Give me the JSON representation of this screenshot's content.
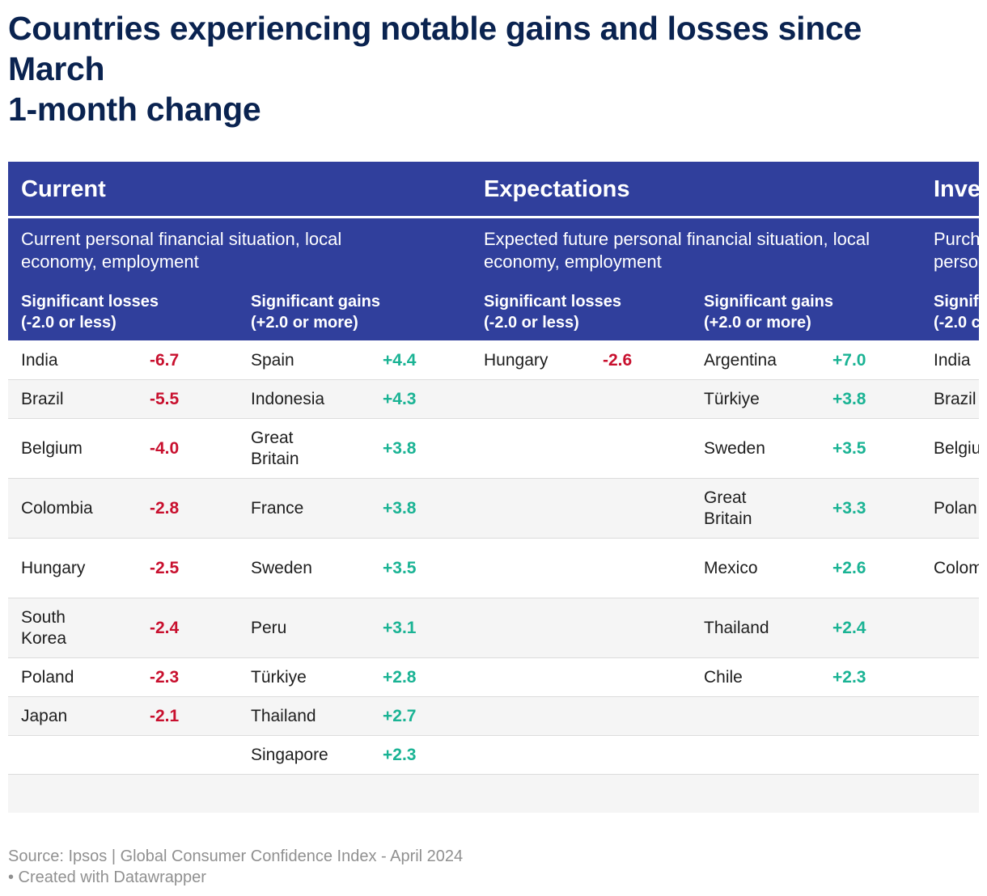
{
  "title_lines": [
    "Countries experiencing notable gains and losses since",
    "March",
    "1-month change"
  ],
  "footer": {
    "source": "Source: Ipsos | Global Consumer Confidence Index - April 2024",
    "credit": "• Created with Datawrapper"
  },
  "colors": {
    "header_bg": "#303f9c",
    "title": "#0a2350",
    "loss": "#c8102e",
    "gain": "#1ab394",
    "row_alt": "#f5f5f5"
  },
  "chart_data": {
    "type": "table",
    "headers": {
      "losses": "Significant losses\n(-2.0 or less)",
      "gains": "Significant gains\n(+2.0 or more)"
    },
    "sections": [
      {
        "title": "Current",
        "description": "Current personal financial situation, local economy, employment",
        "losses": [
          {
            "country": "India",
            "value": "-6.7"
          },
          {
            "country": "Brazil",
            "value": "-5.5"
          },
          {
            "country": "Belgium",
            "value": "-4.0"
          },
          {
            "country": "Colombia",
            "value": "-2.8"
          },
          {
            "country": "Hungary",
            "value": "-2.5"
          },
          {
            "country": "South Korea",
            "value": "-2.4"
          },
          {
            "country": "Poland",
            "value": "-2.3"
          },
          {
            "country": "Japan",
            "value": "-2.1"
          }
        ],
        "gains": [
          {
            "country": "Spain",
            "value": "+4.4"
          },
          {
            "country": "Indonesia",
            "value": "+4.3"
          },
          {
            "country": "Great Britain",
            "value": "+3.8"
          },
          {
            "country": "France",
            "value": "+3.8"
          },
          {
            "country": "Sweden",
            "value": "+3.5"
          },
          {
            "country": "Peru",
            "value": "+3.1"
          },
          {
            "country": "Türkiye",
            "value": "+2.8"
          },
          {
            "country": "Thailand",
            "value": "+2.7"
          },
          {
            "country": "Singapore",
            "value": "+2.3"
          }
        ]
      },
      {
        "title": "Expectations",
        "description": "Expected future personal financial situation, local economy, employment",
        "losses": [
          {
            "country": "Hungary",
            "value": "-2.6"
          }
        ],
        "gains": [
          {
            "country": "Argentina",
            "value": "+7.0"
          },
          {
            "country": "Türkiye",
            "value": "+3.8"
          },
          {
            "country": "Sweden",
            "value": "+3.5"
          },
          {
            "country": "Great Britain",
            "value": "+3.3"
          },
          {
            "country": "Mexico",
            "value": "+2.6"
          },
          {
            "country": "Thailand",
            "value": "+2.4"
          },
          {
            "country": "Chile",
            "value": "+2.3"
          }
        ]
      },
      {
        "title": "Inve",
        "description": "Purch\nperso",
        "losses_header": "Signif\n(-2.0 c",
        "losses": [
          {
            "country": "India",
            "value": ""
          },
          {
            "country": "Brazil",
            "value": ""
          },
          {
            "country": "Belgiu",
            "value": ""
          },
          {
            "country": "Polan",
            "value": ""
          },
          {
            "country": "Colom",
            "value": ""
          }
        ],
        "gains": []
      }
    ]
  }
}
